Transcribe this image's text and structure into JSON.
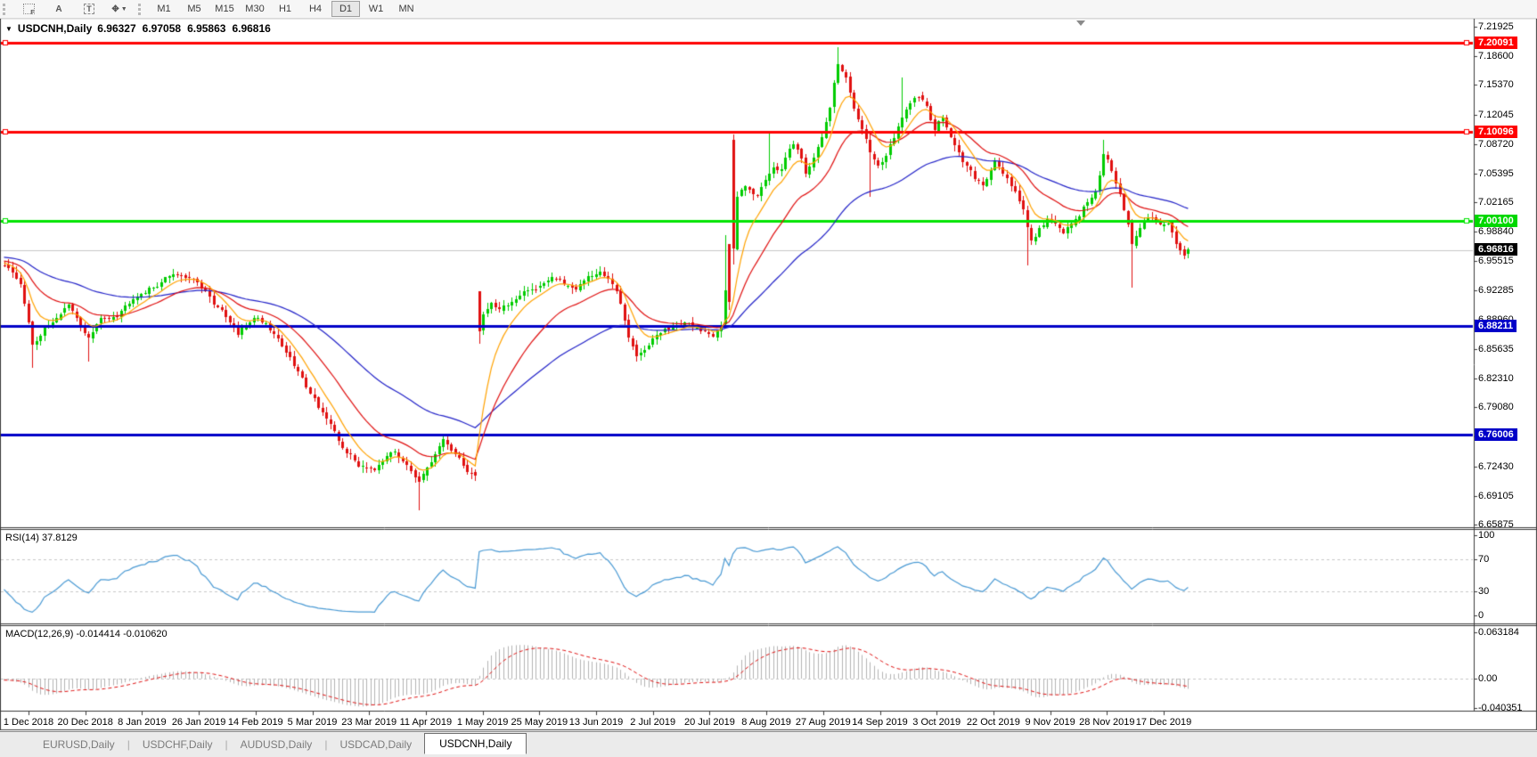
{
  "toolbar": {
    "icons": [
      {
        "name": "indicators-grid-f-icon",
        "glyph": "F"
      },
      {
        "name": "font-a-icon",
        "glyph": "A"
      },
      {
        "name": "text-tool-icon",
        "glyph": "T"
      },
      {
        "name": "cursor-objects-icon",
        "glyph": "✥"
      }
    ],
    "timeframes": [
      "M1",
      "M5",
      "M15",
      "M30",
      "H1",
      "H4",
      "D1",
      "W1",
      "MN"
    ],
    "active_timeframe": "D1"
  },
  "chart": {
    "dropdown_glyph": "▼",
    "symbol_label": "USDCNH,Daily",
    "ohlc": {
      "open": "6.96327",
      "high": "6.97058",
      "low": "6.95863",
      "close": "6.96816"
    }
  },
  "price_axis": {
    "ticks": [
      {
        "label": "7.21925",
        "price": 7.21925
      },
      {
        "label": "7.18600",
        "price": 7.186
      },
      {
        "label": "7.15370",
        "price": 7.1537
      },
      {
        "label": "7.12045",
        "price": 7.12045
      },
      {
        "label": "7.08720",
        "price": 7.0872
      },
      {
        "label": "7.05395",
        "price": 7.05395
      },
      {
        "label": "7.02165",
        "price": 7.02165
      },
      {
        "label": "6.98840",
        "price": 6.9884
      },
      {
        "label": "6.95515",
        "price": 6.95515
      },
      {
        "label": "6.92285",
        "price": 6.92285
      },
      {
        "label": "6.88960",
        "price": 6.8896
      },
      {
        "label": "6.85635",
        "price": 6.85635
      },
      {
        "label": "6.82310",
        "price": 6.8231
      },
      {
        "label": "6.79080",
        "price": 6.7908
      },
      {
        "label": "6.75755",
        "price": 6.75755
      },
      {
        "label": "6.72430",
        "price": 6.7243
      },
      {
        "label": "6.69105",
        "price": 6.69105
      },
      {
        "label": "6.65875",
        "price": 6.65875
      }
    ]
  },
  "hlines": [
    {
      "label": "7.20091",
      "price": 7.20091,
      "color": "#ff0000",
      "width": 3,
      "badge": "red",
      "handles": true
    },
    {
      "label": "7.10096",
      "price": 7.10096,
      "color": "#ff0000",
      "width": 3,
      "badge": "red",
      "handles": true
    },
    {
      "label": "7.00100",
      "price": 7.001,
      "color": "#00e400",
      "width": 3,
      "badge": "green",
      "handles": true
    },
    {
      "label": "6.88211",
      "price": 6.88211,
      "color": "#0000c8",
      "width": 3,
      "badge": "blue",
      "handles": false
    },
    {
      "label": "6.76006",
      "price": 6.76006,
      "color": "#0000c8",
      "width": 3,
      "badge": "blue",
      "handles": false
    }
  ],
  "gray_line_price": 6.968,
  "current_price": {
    "label": "6.96816",
    "price": 6.96816
  },
  "rsi_panel": {
    "label": "RSI(14) 37.8129",
    "ticks": [
      {
        "label": "100",
        "value": 100
      },
      {
        "label": "70",
        "value": 70
      },
      {
        "label": "30",
        "value": 30
      },
      {
        "label": "0",
        "value": 0
      }
    ],
    "dashed_levels": [
      70,
      30
    ]
  },
  "macd_panel": {
    "label": "MACD(12,26,9) -0.014414 -0.010620",
    "ticks": [
      {
        "label": "0.063184",
        "value": 0.063184
      },
      {
        "label": "0.00",
        "value": 0.0
      },
      {
        "label": "-0.040351",
        "value": -0.040351
      }
    ]
  },
  "date_axis": {
    "labels": [
      "1 Dec 2018",
      "20 Dec 2018",
      "8 Jan 2019",
      "26 Jan 2019",
      "14 Feb 2019",
      "5 Mar 2019",
      "23 Mar 2019",
      "11 Apr 2019",
      "1 May 2019",
      "25 May 2019",
      "13 Jun 2019",
      "2 Jul 2019",
      "20 Jul 2019",
      "8 Aug 2019",
      "27 Aug 2019",
      "14 Sep 2019",
      "3 Oct 2019",
      "22 Oct 2019",
      "9 Nov 2019",
      "28 Nov 2019",
      "17 Dec 2019"
    ]
  },
  "tabs": {
    "items": [
      "EURUSD,Daily",
      "USDCHF,Daily",
      "AUDUSD,Daily",
      "USDCAD,Daily",
      "USDCNH,Daily"
    ],
    "active": "USDCNH,Daily"
  },
  "colors": {
    "up": "#00cc00",
    "down": "#e01010",
    "ma_fast": "#ffa200",
    "ma_mid": "#e01010",
    "ma_slow": "#2222c8",
    "rsi": "#4a9ad4",
    "macd_hist": "#b4b4b4",
    "macd_signal": "#e01010",
    "dash_gray": "#c8c8c8",
    "gray_line": "#c8c8c8",
    "badge_red": "#ff0000",
    "badge_green": "#00d800",
    "badge_blue": "#0000c8",
    "badge_black": "#000000",
    "border": "#3c3c3c"
  },
  "chart_data": {
    "type": "candlestick",
    "symbol": "USDCNH",
    "timeframe": "Daily",
    "visible_range": [
      "1 Dec 2018",
      "late Dec 2019"
    ],
    "price_axis_range": [
      6.65875,
      7.21925
    ],
    "n_candles": 295,
    "pre_history": 60,
    "indicators": {
      "ema_fast": 8,
      "ema_mid": 21,
      "ema_slow": 55,
      "rsi": 14,
      "macd": [
        12,
        26,
        9
      ]
    },
    "rsi_last": 37.8129,
    "macd_last": -0.014414,
    "macd_signal_last": -0.01062,
    "close_anchors": [
      [
        0,
        6.952
      ],
      [
        4,
        6.93
      ],
      [
        7,
        6.862
      ],
      [
        12,
        6.888
      ],
      [
        16,
        6.905
      ],
      [
        21,
        6.868
      ],
      [
        24,
        6.89
      ],
      [
        28,
        6.895
      ],
      [
        32,
        6.915
      ],
      [
        37,
        6.925
      ],
      [
        42,
        6.942
      ],
      [
        47,
        6.935
      ],
      [
        54,
        6.898
      ],
      [
        58,
        6.873
      ],
      [
        62,
        6.893
      ],
      [
        65,
        6.885
      ],
      [
        68,
        6.868
      ],
      [
        72,
        6.838
      ],
      [
        77,
        6.8
      ],
      [
        81,
        6.77
      ],
      [
        84,
        6.745
      ],
      [
        88,
        6.726
      ],
      [
        92,
        6.722
      ],
      [
        96,
        6.742
      ],
      [
        100,
        6.728
      ],
      [
        103,
        6.706
      ],
      [
        106,
        6.728
      ],
      [
        109,
        6.755
      ],
      [
        112,
        6.737
      ],
      [
        115,
        6.72
      ],
      [
        117,
        6.712
      ],
      [
        118,
        6.878
      ],
      [
        119,
        6.895
      ],
      [
        121,
        6.908
      ],
      [
        123,
        6.902
      ],
      [
        127,
        6.912
      ],
      [
        130,
        6.922
      ],
      [
        133,
        6.928
      ],
      [
        136,
        6.938
      ],
      [
        139,
        6.93
      ],
      [
        142,
        6.925
      ],
      [
        145,
        6.938
      ],
      [
        148,
        6.942
      ],
      [
        151,
        6.93
      ],
      [
        153,
        6.908
      ],
      [
        155,
        6.868
      ],
      [
        157,
        6.85
      ],
      [
        159,
        6.858
      ],
      [
        162,
        6.872
      ],
      [
        166,
        6.882
      ],
      [
        170,
        6.884
      ],
      [
        173,
        6.878
      ],
      [
        176,
        6.872
      ],
      [
        178,
        6.885
      ],
      [
        179,
        6.922
      ],
      [
        180,
        6.908
      ],
      [
        181,
        6.968
      ],
      [
        182,
        7.028
      ],
      [
        184,
        7.042
      ],
      [
        187,
        7.028
      ],
      [
        189,
        7.048
      ],
      [
        191,
        7.062
      ],
      [
        193,
        7.058
      ],
      [
        194,
        7.07
      ],
      [
        196,
        7.088
      ],
      [
        198,
        7.072
      ],
      [
        199,
        7.055
      ],
      [
        201,
        7.07
      ],
      [
        203,
        7.095
      ],
      [
        205,
        7.13
      ],
      [
        206,
        7.155
      ],
      [
        207,
        7.178
      ],
      [
        209,
        7.16
      ],
      [
        211,
        7.128
      ],
      [
        213,
        7.105
      ],
      [
        215,
        7.08
      ],
      [
        217,
        7.062
      ],
      [
        219,
        7.075
      ],
      [
        221,
        7.095
      ],
      [
        223,
        7.118
      ],
      [
        225,
        7.132
      ],
      [
        227,
        7.142
      ],
      [
        229,
        7.128
      ],
      [
        231,
        7.105
      ],
      [
        233,
        7.118
      ],
      [
        235,
        7.095
      ],
      [
        237,
        7.075
      ],
      [
        239,
        7.062
      ],
      [
        241,
        7.048
      ],
      [
        243,
        7.04
      ],
      [
        245,
        7.06
      ],
      [
        246,
        7.07
      ],
      [
        248,
        7.055
      ],
      [
        250,
        7.04
      ],
      [
        252,
        7.025
      ],
      [
        253,
        7.012
      ],
      [
        254,
        6.995
      ],
      [
        255,
        6.978
      ],
      [
        257,
        6.992
      ],
      [
        259,
        7.002
      ],
      [
        261,
        6.998
      ],
      [
        263,
        6.985
      ],
      [
        265,
        6.998
      ],
      [
        267,
        7.008
      ],
      [
        269,
        7.022
      ],
      [
        271,
        7.035
      ],
      [
        272,
        7.052
      ],
      [
        273,
        7.075
      ],
      [
        274,
        7.068
      ],
      [
        276,
        7.042
      ],
      [
        278,
        7.015
      ],
      [
        279,
        6.998
      ],
      [
        280,
        6.975
      ],
      [
        282,
        6.995
      ],
      [
        284,
        7.005
      ],
      [
        286,
        7.002
      ],
      [
        288,
        6.995
      ],
      [
        289,
        6.998
      ],
      [
        290,
        6.988
      ],
      [
        291,
        6.975
      ],
      [
        292,
        6.965
      ],
      [
        293,
        6.9635
      ],
      [
        294,
        6.96816
      ]
    ],
    "specials": {
      "7": {
        "low": 6.835
      },
      "21": {
        "low": 6.842
      },
      "103": {
        "low": 6.675
      },
      "118": {
        "open": 6.921,
        "low": 6.862
      },
      "179": {
        "high": 6.985
      },
      "180": {
        "open": 6.975,
        "low": 6.9
      },
      "181": {
        "open": 7.092,
        "high": 7.098,
        "low": 6.952
      },
      "190": {
        "high": 7.102
      },
      "207": {
        "high": 7.196
      },
      "215": {
        "low": 7.028
      },
      "223": {
        "high": 7.162
      },
      "254": {
        "low": 6.951
      },
      "273": {
        "high": 7.092
      },
      "280": {
        "low": 6.925
      },
      "294": {
        "open": 6.96327,
        "high": 6.97058,
        "low": 6.95863,
        "close": 6.96816
      }
    }
  }
}
